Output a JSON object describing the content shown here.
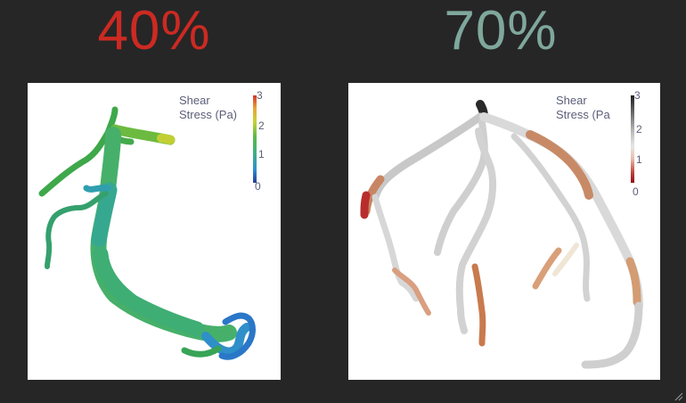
{
  "slides": {
    "left": {
      "percentage": "40%",
      "color": "#cc2a22",
      "legend": {
        "title_line1": "Shear",
        "title_line2": "Stress (Pa)",
        "ticks": [
          "3",
          "2",
          "1",
          "0"
        ],
        "colormap": "rainbow"
      }
    },
    "right": {
      "percentage": "70%",
      "color": "#7fa79c",
      "legend": {
        "title_line1": "Shear",
        "title_line2": "Stress (Pa",
        "ticks": [
          "3",
          "2",
          "1",
          "0"
        ],
        "colormap": "red-grey-black"
      }
    }
  },
  "icons": {
    "corner": "slide-transition-icon"
  }
}
